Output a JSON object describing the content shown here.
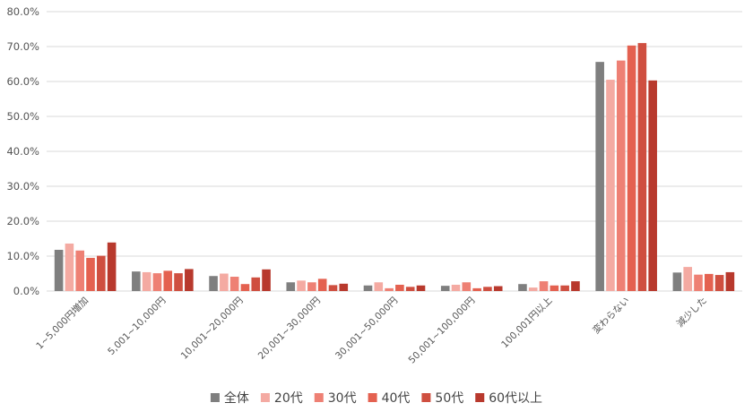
{
  "chart_data": {
    "type": "bar",
    "title": "",
    "xlabel": "",
    "ylabel": "",
    "ylim": [
      0,
      0.8
    ],
    "yticks": [
      0,
      0.1,
      0.2,
      0.3,
      0.4,
      0.5,
      0.6,
      0.7,
      0.8
    ],
    "ytick_labels": [
      "0.0%",
      "10.0%",
      "20.0%",
      "30.0%",
      "40.0%",
      "50.0%",
      "60.0%",
      "70.0%",
      "80.0%"
    ],
    "grid": true,
    "legend_position": "bottom",
    "categories": [
      "1~5,000円増加",
      "5,001~10,000円",
      "10,001~20,000円",
      "20,001~30,000円",
      "30,001~50,000円",
      "50,001~100,000円",
      "100,001円以上",
      "変わらない",
      "減少した"
    ],
    "series": [
      {
        "name": "全体",
        "color": "#7f7f7f",
        "values": [
          0.118,
          0.056,
          0.043,
          0.025,
          0.016,
          0.015,
          0.02,
          0.656,
          0.053
        ]
      },
      {
        "name": "20代",
        "color": "#f4aaa2",
        "values": [
          0.136,
          0.054,
          0.05,
          0.03,
          0.025,
          0.018,
          0.01,
          0.605,
          0.069
        ]
      },
      {
        "name": "30代",
        "color": "#ee8074",
        "values": [
          0.116,
          0.051,
          0.041,
          0.025,
          0.008,
          0.025,
          0.028,
          0.66,
          0.047
        ]
      },
      {
        "name": "40代",
        "color": "#e46150",
        "values": [
          0.095,
          0.058,
          0.02,
          0.035,
          0.018,
          0.008,
          0.016,
          0.703,
          0.049
        ]
      },
      {
        "name": "50代",
        "color": "#cf4f40",
        "values": [
          0.101,
          0.051,
          0.039,
          0.017,
          0.012,
          0.012,
          0.016,
          0.71,
          0.046
        ]
      },
      {
        "name": "60代以上",
        "color": "#b8392d",
        "values": [
          0.139,
          0.063,
          0.062,
          0.021,
          0.016,
          0.014,
          0.028,
          0.603,
          0.054
        ]
      }
    ]
  }
}
